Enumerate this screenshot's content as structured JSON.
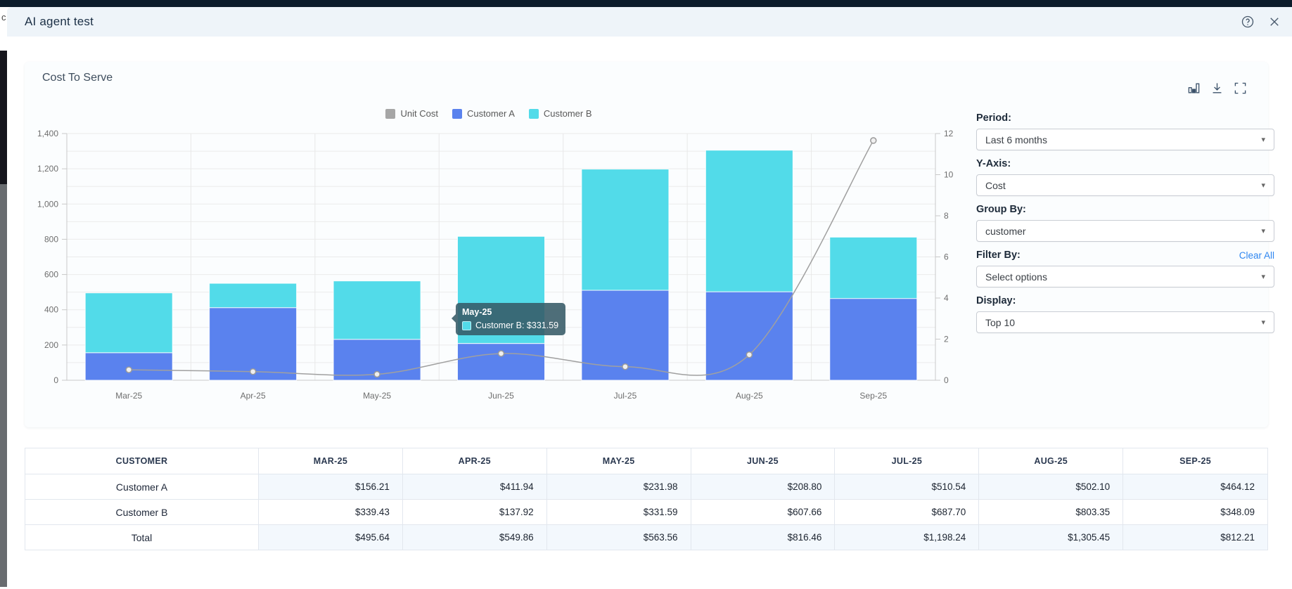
{
  "background": {
    "partial_text": "c"
  },
  "modal": {
    "title": "AI agent test",
    "icons": {
      "help": "help-icon",
      "close": "close-icon"
    }
  },
  "card": {
    "title": "Cost To Serve",
    "toolbar_icons": [
      "chart-type-icon",
      "download-icon",
      "fullscreen-icon"
    ]
  },
  "legend": [
    {
      "label": "Unit Cost",
      "color": "#a6a6a6"
    },
    {
      "label": "Customer A",
      "color": "#5a82ee"
    },
    {
      "label": "Customer B",
      "color": "#52dbe9"
    }
  ],
  "tooltip": {
    "title": "May-25",
    "text": "Customer B: $331.59",
    "swatch": "#52dbe9"
  },
  "controls": {
    "period": {
      "label": "Period:",
      "value": "Last 6 months"
    },
    "y_axis": {
      "label": "Y-Axis:",
      "value": "Cost"
    },
    "group_by": {
      "label": "Group By:",
      "value": "customer"
    },
    "filter_by": {
      "label": "Filter By:",
      "value": "Select options",
      "clear_all": "Clear All"
    },
    "display": {
      "label": "Display:",
      "value": "Top 10"
    }
  },
  "chart_data": {
    "type": "bar",
    "subtype": "stacked-bars-with-line",
    "title": "Cost To Serve",
    "categories": [
      "Mar-25",
      "Apr-25",
      "May-25",
      "Jun-25",
      "Jul-25",
      "Aug-25",
      "Sep-25"
    ],
    "series": [
      {
        "name": "Customer A",
        "type": "bar",
        "stack": "cost",
        "color": "#5a82ee",
        "values": [
          156.21,
          411.94,
          231.98,
          208.8,
          510.54,
          502.1,
          464.12
        ]
      },
      {
        "name": "Customer B",
        "type": "bar",
        "stack": "cost",
        "color": "#52dbe9",
        "values": [
          339.43,
          137.92,
          331.59,
          607.66,
          687.7,
          803.35,
          348.09
        ]
      },
      {
        "name": "Unit Cost",
        "type": "line",
        "axis": "right",
        "color": "#a0a0a0",
        "values": [
          0.51,
          0.42,
          0.29,
          1.3,
          0.66,
          1.24,
          11.66
        ]
      }
    ],
    "left_axis": {
      "min": 0,
      "max": 1400,
      "tick_step": 200,
      "minor_step": 100,
      "labels": [
        "0",
        "200",
        "400",
        "600",
        "800",
        "1,000",
        "1,200",
        "1,400"
      ]
    },
    "right_axis": {
      "min": 0,
      "max": 12,
      "tick_step": 2,
      "labels": [
        "0",
        "2",
        "4",
        "6",
        "8",
        "10",
        "12"
      ]
    },
    "legend_position": "top-center",
    "grid": true
  },
  "table": {
    "headers": [
      "CUSTOMER",
      "MAR-25",
      "APR-25",
      "MAY-25",
      "JUN-25",
      "JUL-25",
      "AUG-25",
      "SEP-25"
    ],
    "rows": [
      {
        "label": "Customer A",
        "striped": true,
        "values": [
          "$156.21",
          "$411.94",
          "$231.98",
          "$208.80",
          "$510.54",
          "$502.10",
          "$464.12"
        ]
      },
      {
        "label": "Customer B",
        "striped": false,
        "values": [
          "$339.43",
          "$137.92",
          "$331.59",
          "$607.66",
          "$687.70",
          "$803.35",
          "$348.09"
        ]
      },
      {
        "label": "Total",
        "striped": true,
        "values": [
          "$495.64",
          "$549.86",
          "$563.56",
          "$816.46",
          "$1,198.24",
          "$1,305.45",
          "$812.21"
        ]
      }
    ]
  }
}
